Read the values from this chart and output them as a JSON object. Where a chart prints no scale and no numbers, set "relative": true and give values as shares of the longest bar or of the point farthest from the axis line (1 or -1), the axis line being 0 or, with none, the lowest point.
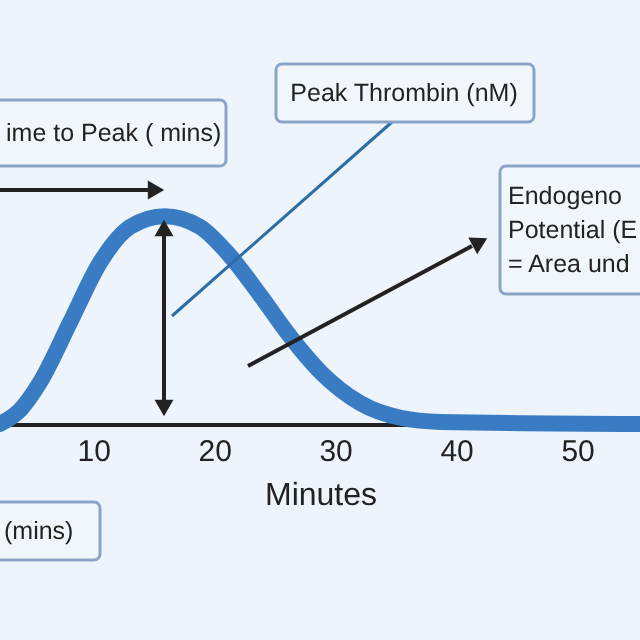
{
  "chart_data": {
    "type": "line",
    "relative": true,
    "xlabel": "Minutes",
    "xlim": [
      2.3,
      55.2
    ],
    "xticks": [
      10,
      20,
      30,
      40,
      50
    ],
    "tick_labels": "x",
    "grid": false,
    "x": [
      2.3,
      4.0,
      5.6,
      8.1,
      10.6,
      13.1,
      15.9,
      18.8,
      21.3,
      23.8,
      26.3,
      28.8,
      32.1,
      35.4,
      38.7,
      55.2
    ],
    "series": [
      {
        "color": "#3a7cc4",
        "values": [
          0,
          0.07,
          0.2,
          0.49,
          0.78,
          0.95,
          1,
          0.95,
          0.81,
          0.62,
          0.42,
          0.25,
          0.1,
          0.03,
          0.01,
          0
        ]
      }
    ],
    "annotations": [
      "ime to Peak ( mins)",
      "Peak Thrombin (nM)",
      "Endogeno\nPotential (E\n= Area und",
      "(mins)"
    ]
  }
}
